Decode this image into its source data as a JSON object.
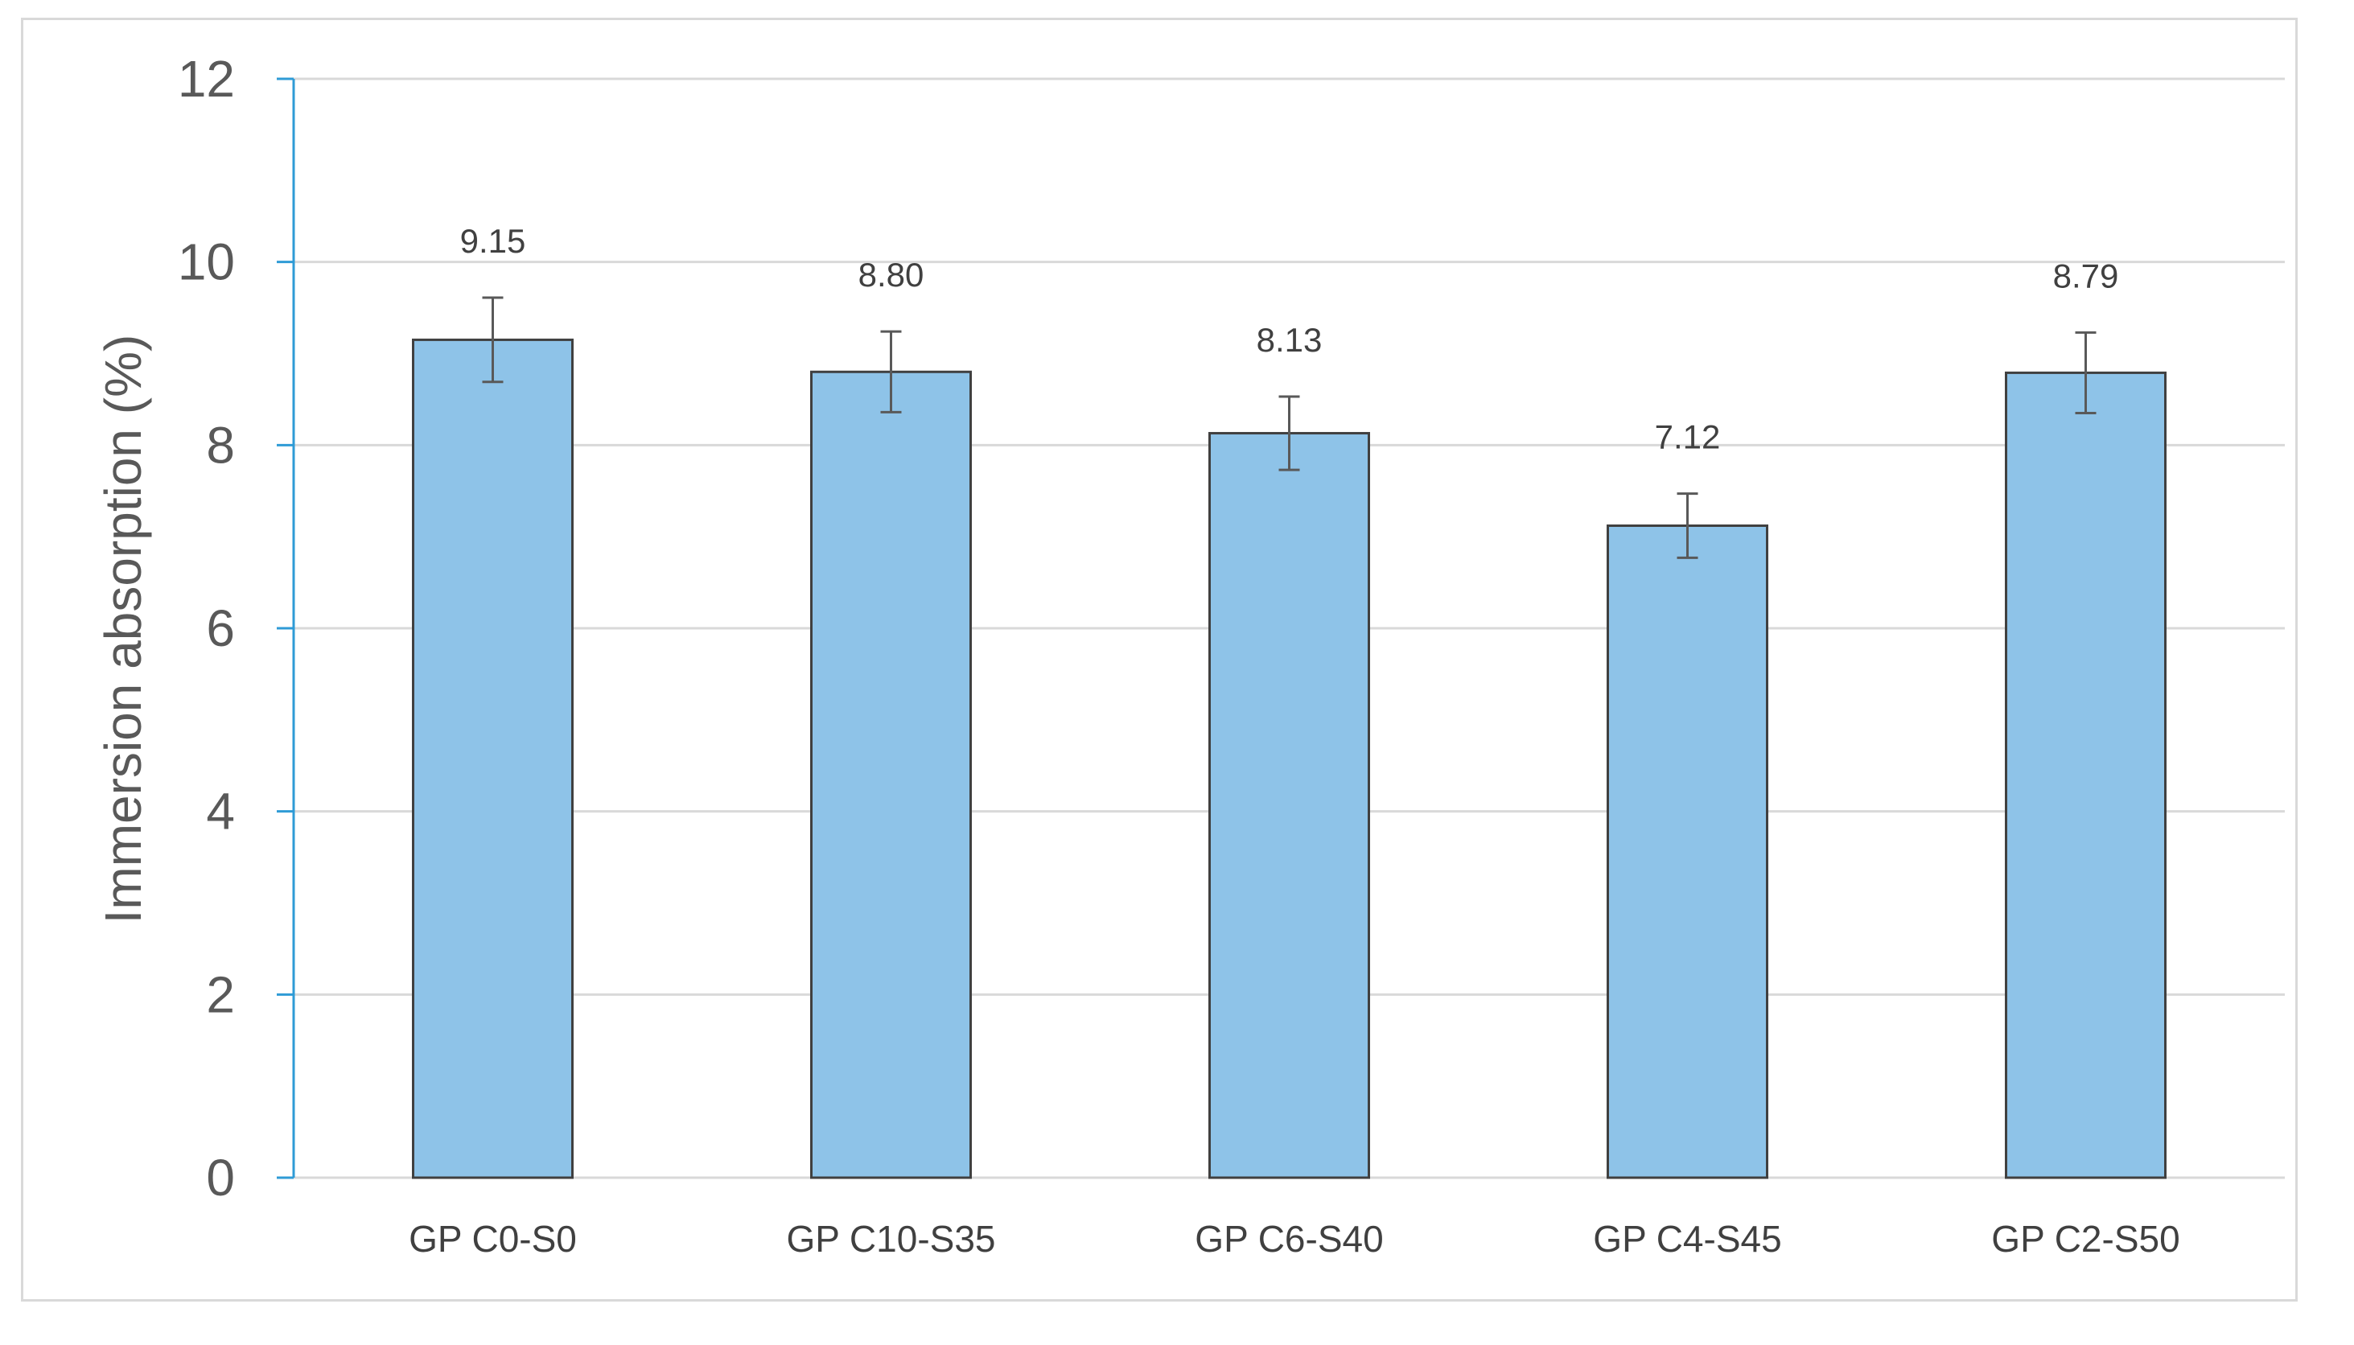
{
  "chart_data": {
    "type": "bar",
    "title": "",
    "xlabel": "",
    "ylabel": "Immersion absorption (%)",
    "ylim": [
      0,
      12
    ],
    "yticks": [
      0,
      2,
      4,
      6,
      8,
      10,
      12
    ],
    "grid": true,
    "categories": [
      "GP C0-S0",
      "GP C10-S35",
      "GP C6-S40",
      "GP C4-S45",
      "GP C2-S50"
    ],
    "values": [
      9.15,
      8.8,
      8.13,
      7.12,
      8.79
    ],
    "data_labels": [
      "9.15",
      "8.80",
      "8.13",
      "7.12",
      "8.79"
    ],
    "error": [
      0.46,
      0.44,
      0.4,
      0.35,
      0.44
    ],
    "colors": {
      "bar_fill": "#8ec3e8",
      "bar_stroke": "#404040",
      "grid": "#d9d9d9",
      "axis": "#2f9bd6",
      "error_bar": "#595959"
    }
  }
}
